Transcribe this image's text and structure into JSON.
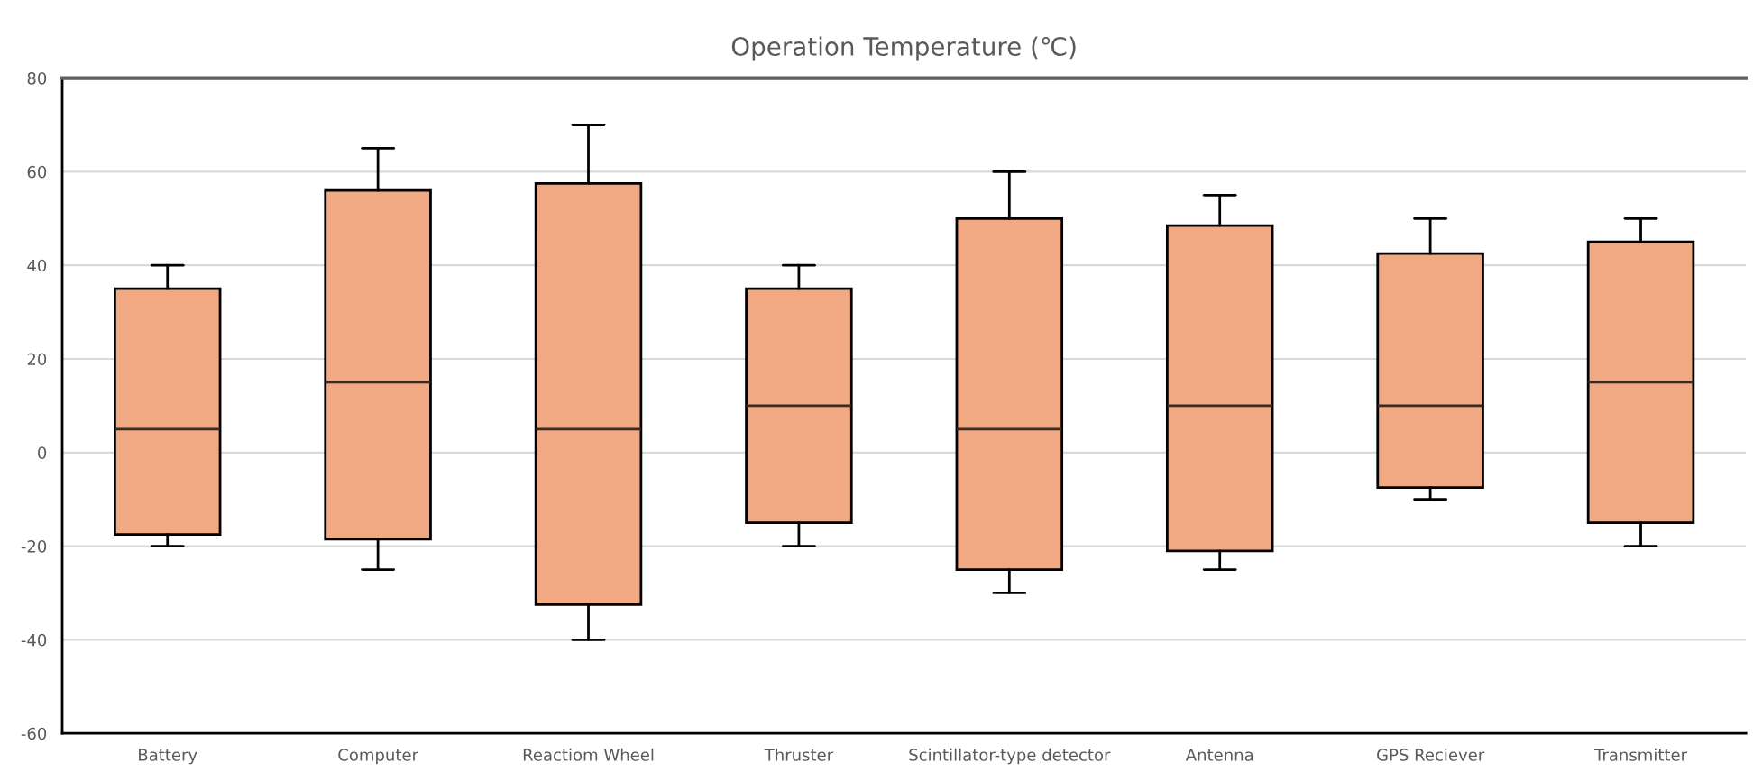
{
  "chart_data": {
    "type": "box",
    "title": "Operation Temperature (℃)",
    "categories": [
      "Battery",
      "Computer",
      "Reactiom Wheel",
      "Thruster",
      "Scintillator-type detector",
      "Antenna",
      "GPS Reciever",
      "Transmitter"
    ],
    "boxes": [
      {
        "low": -20,
        "q1": -17.5,
        "median": 5,
        "q3": 35,
        "high": 40
      },
      {
        "low": -25,
        "q1": -18.5,
        "median": 15,
        "q3": 56,
        "high": 65
      },
      {
        "low": -40,
        "q1": -32.5,
        "median": 5,
        "q3": 57.5,
        "high": 70
      },
      {
        "low": -20,
        "q1": -15,
        "median": 10,
        "q3": 35,
        "high": 40
      },
      {
        "low": -30,
        "q1": -25,
        "median": 5,
        "q3": 50,
        "high": 60
      },
      {
        "low": -25,
        "q1": -21,
        "median": 10,
        "q3": 48.5,
        "high": 55
      },
      {
        "low": -10,
        "q1": -7.5,
        "median": 10,
        "q3": 42.5,
        "high": 50
      },
      {
        "low": -20,
        "q1": -15,
        "median": 15,
        "q3": 45,
        "high": 50
      }
    ],
    "color": "#f0a982",
    "ylim": [
      -60,
      80
    ],
    "yticks": [
      -60,
      -40,
      -20,
      0,
      20,
      40,
      60,
      80
    ],
    "grid": "y"
  }
}
